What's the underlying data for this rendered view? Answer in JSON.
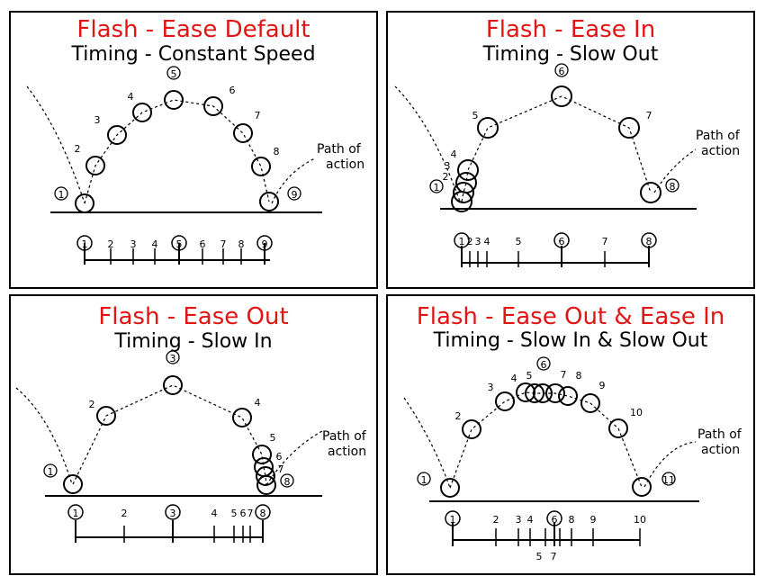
{
  "panels": [
    {
      "title": "Flash - Ease Default",
      "subtitle": "Timing - Constant Speed",
      "annotation": [
        "Path of",
        "action"
      ],
      "frames": [
        "1",
        "2",
        "3",
        "4",
        "5",
        "6",
        "7",
        "8",
        "9"
      ],
      "timeline_labels": [
        "1",
        "2",
        "3",
        "4",
        "5",
        "6",
        "7",
        "8",
        "9"
      ],
      "key_frames": [
        "1",
        "5",
        "9"
      ]
    },
    {
      "title": "Flash - Ease In",
      "subtitle": "Timing - Slow Out",
      "annotation": [
        "Path of",
        "action"
      ],
      "frames": [
        "1",
        "2",
        "3",
        "4",
        "5",
        "6",
        "7",
        "8"
      ],
      "timeline_labels": [
        "1",
        "2",
        "3",
        "4",
        "5",
        "6",
        "7",
        "8"
      ],
      "key_frames": [
        "1",
        "6",
        "8"
      ]
    },
    {
      "title": "Flash - Ease Out",
      "subtitle": "Timing - Slow In",
      "annotation": [
        "Path of",
        "action"
      ],
      "frames": [
        "1",
        "2",
        "3",
        "4",
        "5",
        "6",
        "7",
        "8"
      ],
      "timeline_labels": [
        "1",
        "2",
        "3",
        "4",
        "5",
        "6",
        "7",
        "8"
      ],
      "key_frames": [
        "1",
        "3",
        "8"
      ]
    },
    {
      "title": "Flash - Ease Out & Ease In",
      "subtitle": "Timing - Slow In & Slow Out",
      "annotation": [
        "Path of",
        "action"
      ],
      "frames": [
        "1",
        "2",
        "3",
        "4",
        "5",
        "6",
        "7",
        "8",
        "9",
        "10",
        "11"
      ],
      "timeline_labels": [
        "1",
        "2",
        "3",
        "4",
        "5",
        "6",
        "7",
        "8",
        "9",
        "10",
        "11"
      ],
      "key_frames": [
        "1",
        "6",
        "11"
      ]
    }
  ],
  "colors": {
    "title": "#e31414",
    "ink": "#000000",
    "background": "#ffffff"
  }
}
